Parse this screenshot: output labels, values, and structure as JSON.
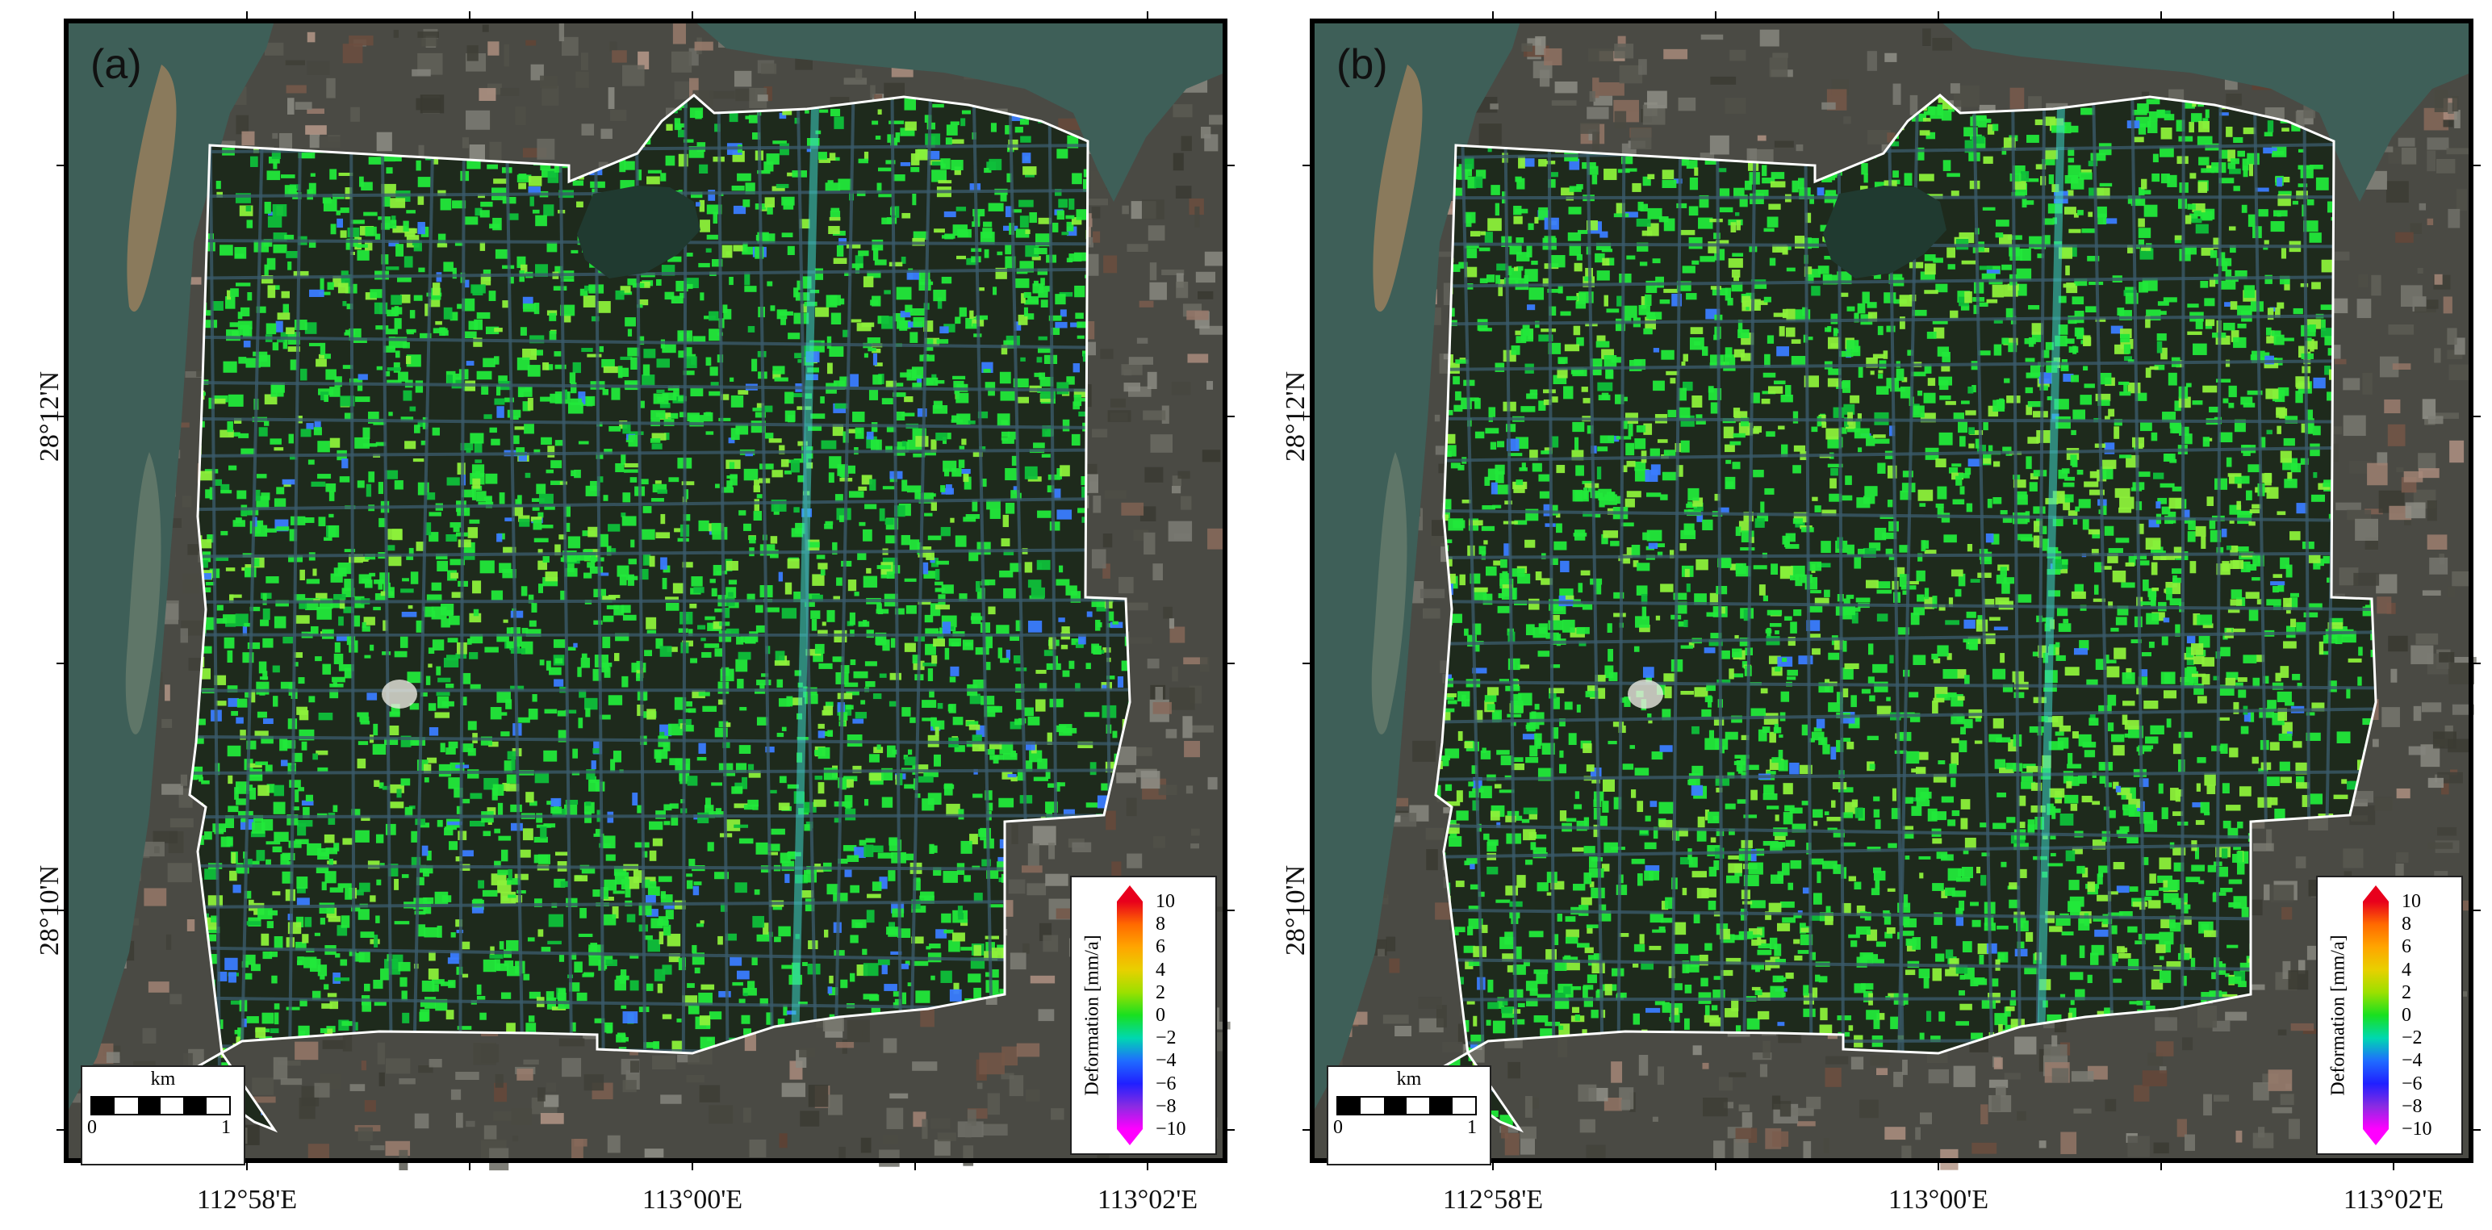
{
  "panels": [
    {
      "id": "a",
      "label": "(a)",
      "variant": "a"
    },
    {
      "id": "b",
      "label": "(b)",
      "variant": "b"
    }
  ],
  "axes": {
    "longitude_labels": [
      "112°58'E",
      "113°00'E",
      "113°02'E"
    ],
    "latitude_labels": [
      "28°12'N",
      "28°10'N"
    ]
  },
  "scale_bar": {
    "unit": "km",
    "start": "0",
    "end": "1"
  },
  "legend": {
    "title": "Deformation [mm/a]",
    "ticks": [
      "10",
      "8",
      "6",
      "4",
      "2",
      "0",
      "−2",
      "−4",
      "−6",
      "−8",
      "−10"
    ],
    "colors": [
      "#e8001c",
      "#ff6a00",
      "#ffa500",
      "#e8d000",
      "#9be000",
      "#18e020",
      "#00d8b0",
      "#1f6cff",
      "#2020ff",
      "#8a2be2",
      "#ff00ff"
    ]
  },
  "colors": {
    "deformation_stable": "#22e83a",
    "deformation_slight_uplift": "#8cf03a",
    "deformation_subsidence": "#3a7cff",
    "boundary": "#ffffff",
    "river": "#3e5f58",
    "basemap": "#4a4a44"
  }
}
